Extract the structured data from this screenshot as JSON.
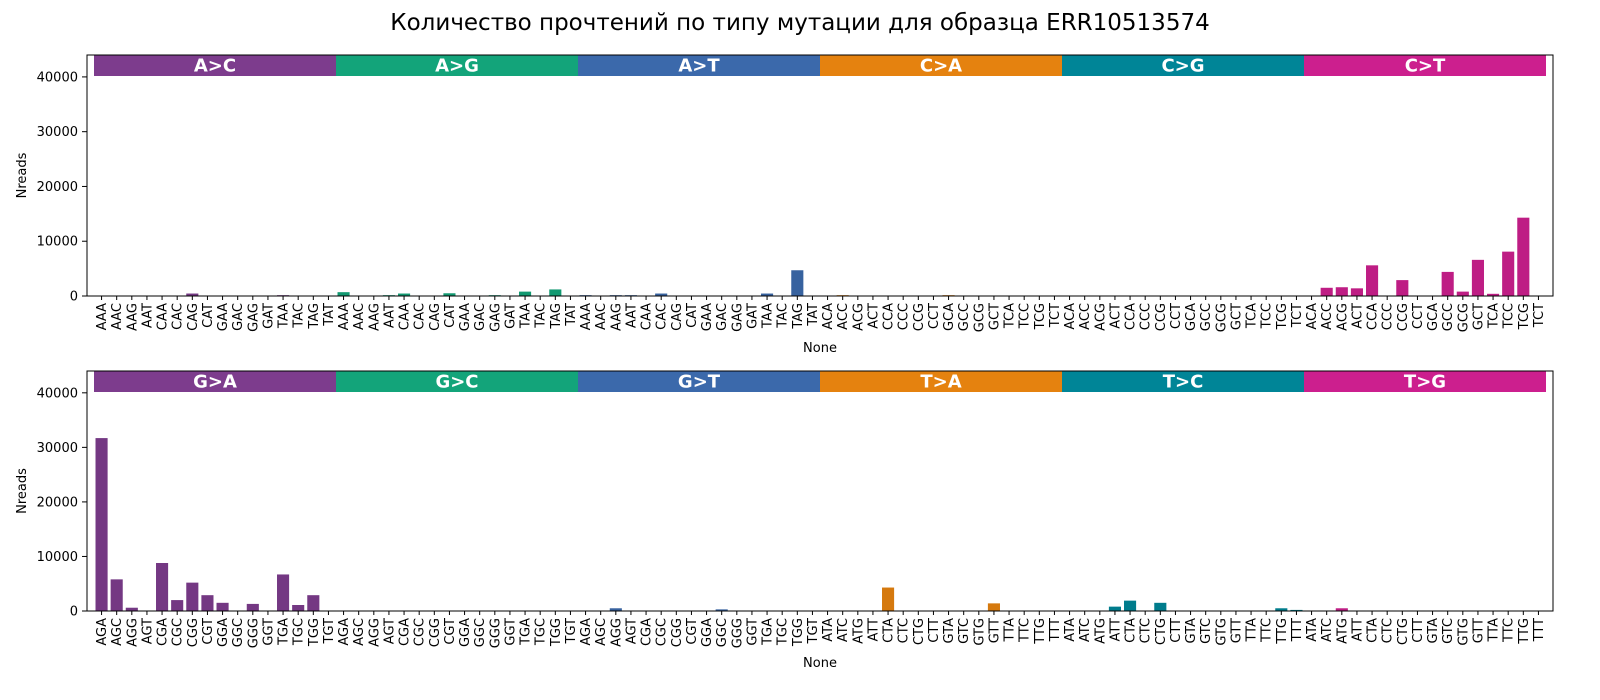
{
  "title": "Количество прочтений по типу мутации для образца ERR10513574",
  "chart_data": [
    {
      "type": "bar",
      "xlabel": "None",
      "ylabel": "Nreads",
      "ylim": [
        0,
        44000
      ],
      "yticks": [
        0,
        10000,
        20000,
        30000,
        40000
      ],
      "groups": [
        {
          "label": "A>C",
          "color": "#7d3c8d",
          "categories": [
            "AAA",
            "AAC",
            "AAG",
            "AAT",
            "CAA",
            "CAC",
            "CAG",
            "CAT",
            "GAA",
            "GAC",
            "GAG",
            "GAT",
            "TAA",
            "TAC",
            "TAG",
            "TAT"
          ],
          "values": [
            0,
            0,
            0,
            0,
            0,
            0,
            450,
            0,
            0,
            0,
            0,
            0,
            150,
            0,
            0,
            0
          ]
        },
        {
          "label": "A>G",
          "color": "#13a47a",
          "categories": [
            "AAA",
            "AAC",
            "AAG",
            "AAT",
            "CAA",
            "CAC",
            "CAG",
            "CAT",
            "GAA",
            "GAC",
            "GAG",
            "GAT",
            "TAA",
            "TAC",
            "TAG",
            "TAT"
          ],
          "values": [
            700,
            0,
            0,
            150,
            450,
            0,
            0,
            500,
            0,
            0,
            150,
            0,
            800,
            0,
            1200,
            0
          ]
        },
        {
          "label": "A>T",
          "color": "#3b69ab",
          "categories": [
            "AAA",
            "AAC",
            "AAG",
            "AAT",
            "CAA",
            "CAC",
            "CAG",
            "CAT",
            "GAA",
            "GAC",
            "GAG",
            "GAT",
            "TAA",
            "TAC",
            "TAG",
            "TAT"
          ],
          "values": [
            150,
            0,
            150,
            150,
            0,
            450,
            0,
            0,
            0,
            0,
            0,
            0,
            450,
            0,
            4700,
            0
          ]
        },
        {
          "label": "C>A",
          "color": "#e5820f",
          "categories": [
            "ACA",
            "ACC",
            "ACG",
            "ACT",
            "CCA",
            "CCC",
            "CCG",
            "CCT",
            "GCA",
            "GCC",
            "GCG",
            "GCT",
            "TCA",
            "TCC",
            "TCG",
            "TCT"
          ],
          "values": [
            0,
            150,
            0,
            0,
            0,
            0,
            0,
            0,
            150,
            0,
            0,
            0,
            0,
            0,
            0,
            0
          ]
        },
        {
          "label": "C>G",
          "color": "#008597",
          "categories": [
            "ACA",
            "ACC",
            "ACG",
            "ACT",
            "CCA",
            "CCC",
            "CCG",
            "CCT",
            "GCA",
            "GCC",
            "GCG",
            "GCT",
            "TCA",
            "TCC",
            "TCG",
            "TCT"
          ],
          "values": [
            0,
            0,
            0,
            0,
            0,
            0,
            0,
            0,
            0,
            0,
            0,
            0,
            0,
            0,
            0,
            0
          ]
        },
        {
          "label": "C>T",
          "color": "#cc1f8e",
          "categories": [
            "ACA",
            "ACC",
            "ACG",
            "ACT",
            "CCA",
            "CCC",
            "CCG",
            "CCT",
            "GCA",
            "GCC",
            "GCG",
            "GCT",
            "TCA",
            "TCC",
            "TCG",
            "TCT"
          ],
          "values": [
            0,
            1500,
            1600,
            1400,
            5600,
            0,
            2900,
            0,
            0,
            4400,
            800,
            6600,
            400,
            8100,
            14300,
            0
          ]
        }
      ]
    },
    {
      "type": "bar",
      "xlabel": "None",
      "ylabel": "Nreads",
      "ylim": [
        0,
        44000
      ],
      "yticks": [
        0,
        10000,
        20000,
        30000,
        40000
      ],
      "groups": [
        {
          "label": "G>A",
          "color": "#7d3c8d",
          "categories": [
            "AGA",
            "AGC",
            "AGG",
            "AGT",
            "CGA",
            "CGC",
            "CGG",
            "CGT",
            "GGA",
            "GGC",
            "GGG",
            "GGT",
            "TGA",
            "TGC",
            "TGG",
            "TGT"
          ],
          "values": [
            31700,
            5800,
            600,
            0,
            8800,
            2000,
            5200,
            2900,
            1500,
            0,
            1300,
            0,
            6700,
            1100,
            2900,
            0
          ]
        },
        {
          "label": "G>C",
          "color": "#13a47a",
          "categories": [
            "AGA",
            "AGC",
            "AGG",
            "AGT",
            "CGA",
            "CGC",
            "CGG",
            "CGT",
            "GGA",
            "GGC",
            "GGG",
            "GGT",
            "TGA",
            "TGC",
            "TGG",
            "TGT"
          ],
          "values": [
            0,
            0,
            0,
            0,
            0,
            0,
            0,
            0,
            0,
            0,
            0,
            0,
            0,
            0,
            0,
            0
          ]
        },
        {
          "label": "G>T",
          "color": "#3b69ab",
          "categories": [
            "AGA",
            "AGC",
            "AGG",
            "AGT",
            "CGA",
            "CGC",
            "CGG",
            "CGT",
            "GGA",
            "GGC",
            "GGG",
            "GGT",
            "TGA",
            "TGC",
            "TGG",
            "TGT"
          ],
          "values": [
            0,
            0,
            500,
            0,
            0,
            0,
            0,
            0,
            0,
            300,
            0,
            0,
            0,
            0,
            0,
            0
          ]
        },
        {
          "label": "T>A",
          "color": "#e5820f",
          "categories": [
            "ATA",
            "ATC",
            "ATG",
            "ATT",
            "CTA",
            "CTC",
            "CTG",
            "CTT",
            "GTA",
            "GTC",
            "GTG",
            "GTT",
            "TTA",
            "TTC",
            "TTG",
            "TTT"
          ],
          "values": [
            0,
            0,
            0,
            0,
            4300,
            0,
            0,
            0,
            0,
            0,
            0,
            1400,
            0,
            0,
            0,
            0
          ]
        },
        {
          "label": "T>C",
          "color": "#008597",
          "categories": [
            "ATA",
            "ATC",
            "ATG",
            "ATT",
            "CTA",
            "CTC",
            "CTG",
            "CTT",
            "GTA",
            "GTC",
            "GTG",
            "GTT",
            "TTA",
            "TTC",
            "TTG",
            "TTT"
          ],
          "values": [
            0,
            0,
            0,
            800,
            1900,
            0,
            1500,
            0,
            0,
            0,
            0,
            0,
            0,
            0,
            500,
            200
          ]
        },
        {
          "label": "T>G",
          "color": "#cc1f8e",
          "categories": [
            "ATA",
            "ATC",
            "ATG",
            "ATT",
            "CTA",
            "CTC",
            "CTG",
            "CTT",
            "GTA",
            "GTC",
            "GTG",
            "GTT",
            "TTA",
            "TTC",
            "TTG",
            "TTT"
          ],
          "values": [
            0,
            0,
            500,
            0,
            0,
            0,
            0,
            0,
            0,
            0,
            0,
            0,
            0,
            0,
            0,
            0
          ]
        }
      ]
    }
  ]
}
